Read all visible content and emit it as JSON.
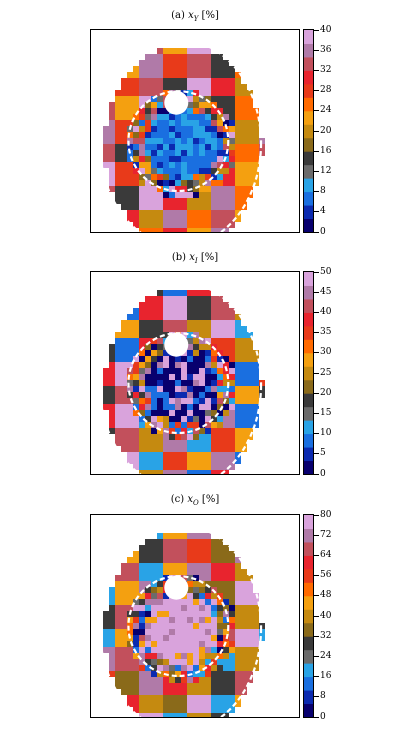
{
  "chart_data": [
    {
      "type": "heatmap",
      "title_main": "(a) ",
      "title_var": "x",
      "title_sub": "Y",
      "title_unit": " [%]",
      "colorbar": {
        "min": 0,
        "max": 40,
        "ticks": [
          "0",
          "4",
          "8",
          "12",
          "16",
          "20",
          "24",
          "28",
          "32",
          "36",
          "40"
        ]
      },
      "dominant_core_color": "#1f6fd8",
      "annotations": [
        "white dashed circle (inner)",
        "white dashed ellipse (outer)",
        "white hole (upper-left of core)"
      ]
    },
    {
      "type": "heatmap",
      "title_main": "(b) ",
      "title_var": "x",
      "title_sub": "I",
      "title_unit": " [%]",
      "colorbar": {
        "min": 0,
        "max": 50,
        "ticks": [
          "0",
          "5",
          "10",
          "15",
          "20",
          "25",
          "30",
          "35",
          "40",
          "45",
          "50"
        ]
      },
      "dominant_core_color": "#101f8a",
      "annotations": [
        "white dashed circle (inner)",
        "white dashed ellipse (outer)",
        "white hole (upper-left of core)"
      ]
    },
    {
      "type": "heatmap",
      "title_main": "(c) ",
      "title_var": "x",
      "title_sub": "O",
      "title_unit": " [%]",
      "colorbar": {
        "min": 0,
        "max": 80,
        "ticks": [
          "0",
          "8",
          "16",
          "24",
          "32",
          "40",
          "48",
          "56",
          "64",
          "72",
          "80"
        ]
      },
      "dominant_core_color": "#d9a3dc",
      "annotations": [
        "white dashed circle (inner)",
        "white dashed ellipse (outer)",
        "white hole (upper-left of core)"
      ]
    }
  ],
  "colormap": [
    "#08006e",
    "#0b2ab0",
    "#1a6fe0",
    "#29a3e6",
    "#6b6b6b",
    "#3a3a3a",
    "#8a6a1a",
    "#c58a10",
    "#f4a010",
    "#ff6a00",
    "#e83a1a",
    "#e8242e",
    "#c2505c",
    "#b07aa8",
    "#d9a3dc"
  ]
}
